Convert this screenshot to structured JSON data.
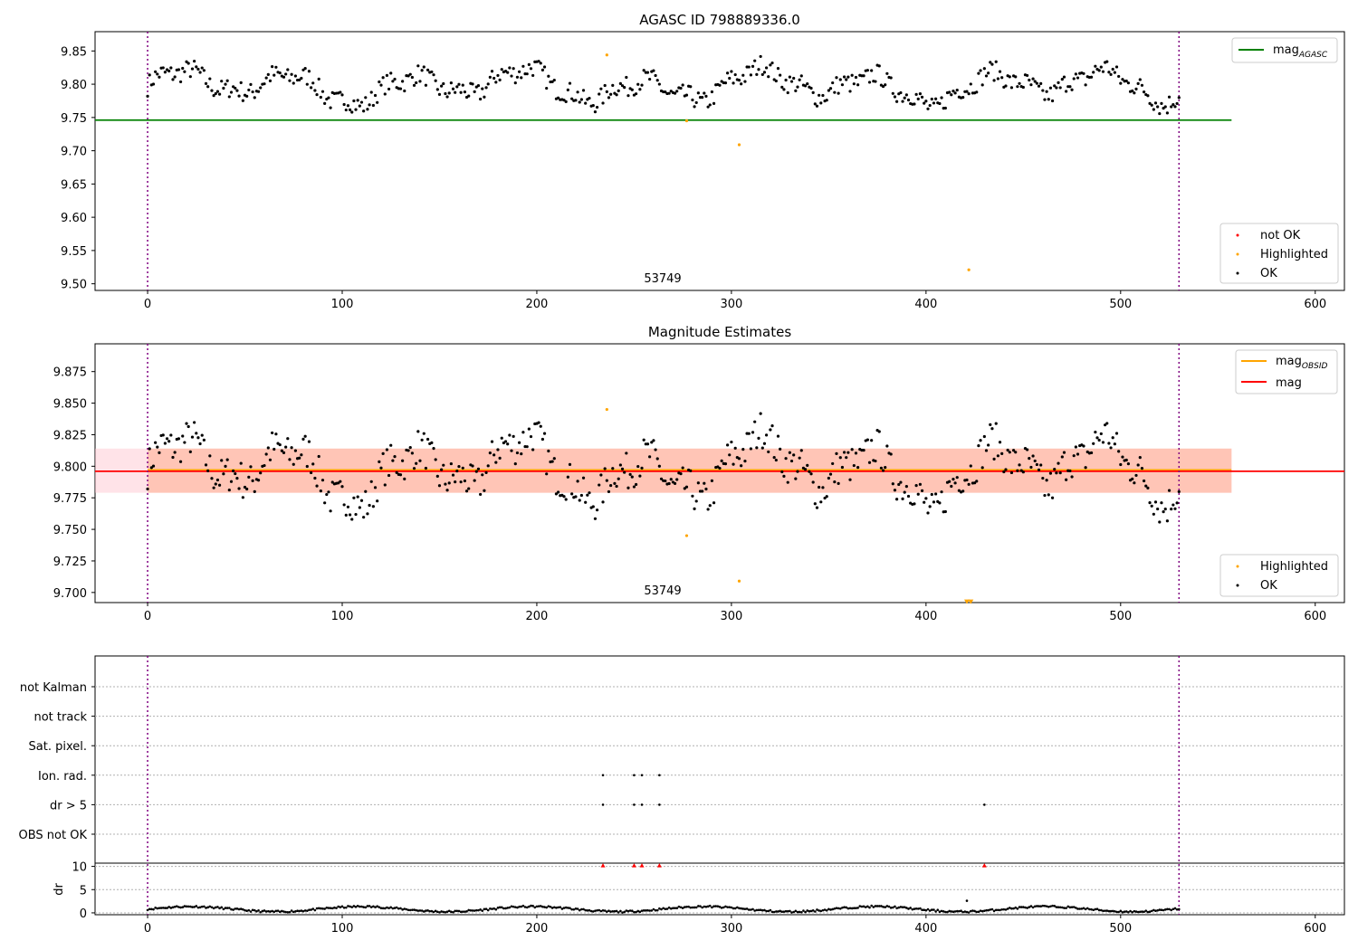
{
  "chart_data": [
    {
      "type": "scatter",
      "title": "AGASC ID 798889336.0",
      "xlabel": "",
      "ylabel": "",
      "xlim": [
        -27,
        615
      ],
      "ylim": [
        9.49,
        9.879
      ],
      "xticks": [
        "0",
        "100",
        "200",
        "300",
        "400",
        "500",
        "600"
      ],
      "yticks": [
        "9.50",
        "9.55",
        "9.60",
        "9.65",
        "9.70",
        "9.75",
        "9.80",
        "9.85"
      ],
      "vlines": [
        0,
        530
      ],
      "hline": {
        "name": "mag_AGASC",
        "y": 9.746,
        "x_range": [
          -27,
          557
        ],
        "color": "#008000"
      },
      "annotation": {
        "text": "53749",
        "x": 265,
        "y": 9.5
      },
      "legend_top": {
        "position": "top-right",
        "entries": [
          {
            "label": "mag",
            "sub": "AGASC",
            "color": "#008000"
          }
        ]
      },
      "legend_bottom": {
        "position": "bottom-right",
        "entries": [
          {
            "label": "not OK",
            "color": "#ff0000"
          },
          {
            "label": "Highlighted",
            "color": "#ffa500"
          },
          {
            "label": "OK",
            "color": "#000000"
          }
        ]
      },
      "highlighted": [
        [
          236,
          9.844
        ],
        [
          277,
          9.745
        ],
        [
          304,
          9.709
        ],
        [
          422,
          9.521
        ]
      ],
      "series_ok_description": "~530 OK points, one per index 0-530, magnitude oscillating ~9.75-9.845"
    },
    {
      "type": "scatter",
      "title": "Magnitude Estimates",
      "xlabel": "",
      "ylabel": "",
      "xlim": [
        -27,
        615
      ],
      "ylim": [
        9.692,
        9.897
      ],
      "xticks": [
        "0",
        "100",
        "200",
        "300",
        "400",
        "500",
        "600"
      ],
      "yticks": [
        "9.700",
        "9.725",
        "9.750",
        "9.775",
        "9.800",
        "9.825",
        "9.850",
        "9.875"
      ],
      "vlines": [
        0,
        530
      ],
      "lines": [
        {
          "name": "mag_OBSID",
          "y": 9.797,
          "color": "#ffa500"
        },
        {
          "name": "mag",
          "y": 9.796,
          "color": "#ff0000"
        }
      ],
      "bands": [
        {
          "name": "mag range",
          "y": [
            9.779,
            9.814
          ],
          "color": "#ffc0cb"
        },
        {
          "name": "mag_OBSID range",
          "y": [
            9.779,
            9.814
          ],
          "color": "#ffa07a"
        }
      ],
      "annotation": {
        "text": "53749",
        "x": 265,
        "y": 9.703
      },
      "legend_top": {
        "position": "top-right",
        "entries": [
          {
            "label": "mag",
            "sub": "OBSID",
            "color": "#ffa500"
          },
          {
            "label": "mag",
            "sub": "",
            "color": "#ff0000"
          }
        ]
      },
      "legend_bottom": {
        "position": "bottom-right",
        "entries": [
          {
            "label": "Highlighted",
            "color": "#ffa500"
          },
          {
            "label": "OK",
            "color": "#000000"
          }
        ]
      },
      "highlighted": [
        [
          236,
          9.845
        ],
        [
          277,
          9.745
        ],
        [
          304,
          9.709
        ]
      ],
      "clipped_markers": [
        [
          421,
          9.693
        ],
        [
          423,
          9.693
        ]
      ]
    },
    {
      "type": "scatter",
      "title": "",
      "xlabel": "",
      "ylabel": "",
      "xlim": [
        -27,
        615
      ],
      "ycategories": [
        "not Kalman",
        "not track",
        "Sat. pixel.",
        "Ion. rad.",
        "dr > 5",
        "OBS not OK"
      ],
      "flags": {
        "Ion. rad.": [
          234,
          250,
          254,
          263
        ],
        "dr > 5": [
          234,
          250,
          254,
          263,
          430
        ]
      },
      "vlines": [
        0,
        530
      ]
    },
    {
      "type": "scatter",
      "title": "",
      "xlabel": "",
      "ylabel": "dr",
      "xlim": [
        -27,
        615
      ],
      "ylim": [
        -0.4,
        10.7
      ],
      "xticks": [
        "0",
        "100",
        "200",
        "300",
        "400",
        "500",
        "600"
      ],
      "yticks": [
        "0",
        "5",
        "10"
      ],
      "vlines": [
        0,
        530
      ],
      "red_markers_x": [
        234,
        250,
        254,
        263,
        430
      ],
      "outlier": [
        421,
        2.6
      ]
    }
  ]
}
